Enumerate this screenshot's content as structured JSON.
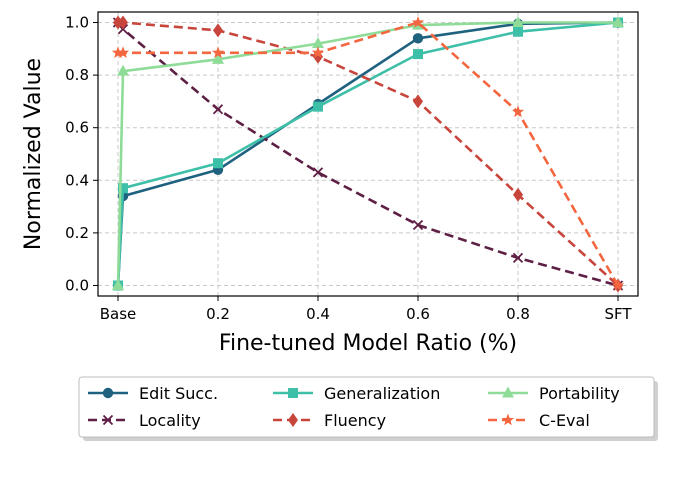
{
  "chart_data": {
    "type": "line",
    "title": "",
    "xlabel": "Fine-tuned Model Ratio (%)",
    "ylabel": "Normalized Value",
    "x": [
      0,
      0.01,
      0.2,
      0.4,
      0.6,
      0.8,
      1.0
    ],
    "xticks": [
      {
        "value": 0,
        "label": "Base"
      },
      {
        "value": 0.2,
        "label": "0.2"
      },
      {
        "value": 0.4,
        "label": "0.4"
      },
      {
        "value": 0.6,
        "label": "0.6"
      },
      {
        "value": 0.8,
        "label": "0.8"
      },
      {
        "value": 1.0,
        "label": "SFT"
      }
    ],
    "yticks": [
      {
        "value": 0.0,
        "label": "0.0"
      },
      {
        "value": 0.2,
        "label": "0.2"
      },
      {
        "value": 0.4,
        "label": "0.4"
      },
      {
        "value": 0.6,
        "label": "0.6"
      },
      {
        "value": 0.8,
        "label": "0.8"
      },
      {
        "value": 1.0,
        "label": "1.0"
      }
    ],
    "xlim": [
      -0.04,
      1.04
    ],
    "ylim": [
      -0.04,
      1.04
    ],
    "grid": true,
    "legend_position": "bottom",
    "series": [
      {
        "name": "Edit Succ.",
        "color": "#1f6280",
        "dash": "solid",
        "marker": "circle",
        "values": [
          0.0,
          0.34,
          0.44,
          0.69,
          0.94,
          0.995,
          1.0
        ]
      },
      {
        "name": "Locality",
        "color": "#5e1f45",
        "dash": "dashed",
        "marker": "x",
        "values": [
          1.0,
          0.975,
          0.67,
          0.43,
          0.23,
          0.105,
          0.0
        ]
      },
      {
        "name": "Generalization",
        "color": "#3ebfa8",
        "dash": "solid",
        "marker": "square",
        "values": [
          0.0,
          0.37,
          0.465,
          0.68,
          0.88,
          0.965,
          1.0
        ]
      },
      {
        "name": "Fluency",
        "color": "#c8453c",
        "dash": "dashed",
        "marker": "diamond",
        "values": [
          1.0,
          1.0,
          0.97,
          0.87,
          0.7,
          0.345,
          0.0
        ]
      },
      {
        "name": "Portability",
        "color": "#8fdc98",
        "dash": "solid",
        "marker": "triangle",
        "values": [
          0.0,
          0.815,
          0.86,
          0.92,
          0.99,
          1.0,
          1.0
        ]
      },
      {
        "name": "C-Eval",
        "color": "#f4663f",
        "dash": "dashed",
        "marker": "star",
        "values": [
          0.885,
          0.885,
          0.885,
          0.885,
          1.0,
          0.66,
          0.0
        ]
      }
    ]
  }
}
